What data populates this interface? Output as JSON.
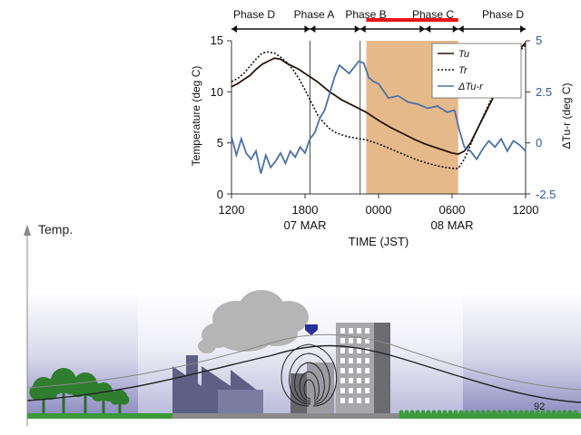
{
  "chart_data": {
    "type": "line",
    "ylabel_left": "Temperature (deg C)",
    "ylabel_right": "ΔTu-r (deg C)",
    "xlabel": "TIME (JST)",
    "x_ticks": [
      "1200",
      "1800",
      "0000",
      "0600",
      "1200"
    ],
    "date_labels": [
      "07 MAR",
      "08 MAR"
    ],
    "y_left_ticks": [
      "0",
      "5",
      "10",
      "15"
    ],
    "y_right_ticks": [
      "-2.5",
      "0",
      "2.5",
      "5"
    ],
    "ylim_left": [
      0,
      15
    ],
    "ylim_right": [
      -2.5,
      5
    ],
    "x_hours": [
      0,
      24
    ],
    "phases": [
      {
        "label": "Phase D",
        "start": 0,
        "end": 6.4
      },
      {
        "label": "Phase A",
        "start": 6.4,
        "end": 10.5
      },
      {
        "label": "Phase B",
        "start": 10.5,
        "end": 15.8
      },
      {
        "label": "Phase  C",
        "start": 15.8,
        "end": 18.5
      },
      {
        "label": "Phase D",
        "start": 18.5,
        "end": 24
      }
    ],
    "shaded_region": {
      "start": 11.0,
      "end": 18.5,
      "color": "#e6b98a"
    },
    "highlight_bar": {
      "start": 11.0,
      "end": 18.5,
      "color": "#e8141b"
    },
    "series": [
      {
        "name": "Tu",
        "axis": "left",
        "color": "#2a1306",
        "style": "solid",
        "x": [
          0,
          0.5,
          1,
          1.5,
          2,
          2.5,
          3,
          3.5,
          4,
          4.5,
          5,
          5.5,
          6,
          6.5,
          7,
          7.5,
          8,
          8.5,
          9,
          9.5,
          10,
          10.5,
          11,
          12,
          13,
          14,
          15,
          16,
          17,
          18,
          18.5,
          19,
          19.5,
          20,
          20.5,
          21,
          21.5,
          22,
          22.5,
          23,
          23.5,
          24
        ],
        "y": [
          10.5,
          10.8,
          11.2,
          11.6,
          12.2,
          12.7,
          13.0,
          13.3,
          13.2,
          12.8,
          12.5,
          12.2,
          11.8,
          11.4,
          11.0,
          10.5,
          10.0,
          9.6,
          9.2,
          8.9,
          8.6,
          8.3,
          8.0,
          7.2,
          6.5,
          5.9,
          5.3,
          4.8,
          4.4,
          4.0,
          3.9,
          4.2,
          5.0,
          6.2,
          7.4,
          8.6,
          9.8,
          11.0,
          12.2,
          13.3,
          14.2,
          14.8
        ]
      },
      {
        "name": "Tr",
        "axis": "left",
        "color": "#111111",
        "style": "dotted",
        "x": [
          0,
          0.5,
          1,
          1.5,
          2,
          2.5,
          3,
          3.5,
          4,
          4.5,
          5,
          5.5,
          6,
          6.5,
          7,
          7.5,
          8,
          8.5,
          9,
          9.5,
          10,
          10.5,
          11,
          12,
          13,
          14,
          15,
          16,
          17,
          18,
          18.5,
          19,
          19.5,
          20,
          20.5,
          21,
          21.5,
          22,
          22.5,
          23,
          23.5,
          24
        ],
        "y": [
          11.0,
          11.3,
          11.8,
          12.5,
          13.2,
          13.8,
          13.9,
          13.8,
          13.4,
          12.9,
          12.2,
          11.3,
          10.2,
          9.0,
          7.8,
          7.0,
          6.4,
          6.0,
          5.8,
          5.6,
          5.5,
          5.4,
          5.3,
          4.9,
          4.4,
          3.9,
          3.4,
          3.0,
          2.7,
          2.5,
          2.5,
          3.4,
          4.8,
          6.2,
          7.5,
          8.8,
          10.0,
          11.2,
          12.3,
          13.3,
          14.0,
          14.6
        ]
      },
      {
        "name": "ΔTu-r",
        "axis": "right",
        "color": "#4a72a8",
        "style": "solid",
        "x": [
          0,
          0.4,
          0.8,
          1.2,
          1.6,
          2,
          2.4,
          2.8,
          3.2,
          3.6,
          4,
          4.4,
          4.8,
          5.2,
          5.6,
          6,
          6.4,
          6.8,
          7.2,
          7.6,
          8,
          8.4,
          8.8,
          9.2,
          9.6,
          10,
          10.4,
          10.8,
          11.2,
          11.6,
          12,
          12.8,
          13.6,
          14.4,
          15.2,
          16,
          16.8,
          17.6,
          18.2,
          18.6,
          19,
          19.5,
          20,
          20.5,
          21,
          21.5,
          22,
          22.5,
          23,
          23.5,
          24
        ],
        "y": [
          0.3,
          -0.6,
          0.2,
          -0.5,
          -0.8,
          -0.4,
          -1.5,
          -0.6,
          -1.2,
          -0.9,
          -0.5,
          -1.0,
          -0.4,
          -0.7,
          -0.2,
          -0.5,
          0.2,
          0.5,
          1.2,
          1.6,
          2.4,
          3.2,
          3.8,
          3.6,
          3.4,
          3.7,
          4.0,
          3.9,
          3.2,
          3.0,
          2.9,
          2.2,
          2.3,
          2.0,
          1.9,
          1.7,
          1.8,
          1.5,
          1.6,
          0.6,
          -0.2,
          -0.4,
          -0.8,
          -0.3,
          0.1,
          -0.2,
          0.2,
          -0.4,
          0.1,
          -0.1,
          -0.4
        ]
      }
    ],
    "legend": [
      "Tu",
      "Tr",
      "ΔTu-r"
    ],
    "legend_position": "top-right"
  },
  "illustration": {
    "axis_label": "Temp.",
    "sensor_label": "92"
  }
}
